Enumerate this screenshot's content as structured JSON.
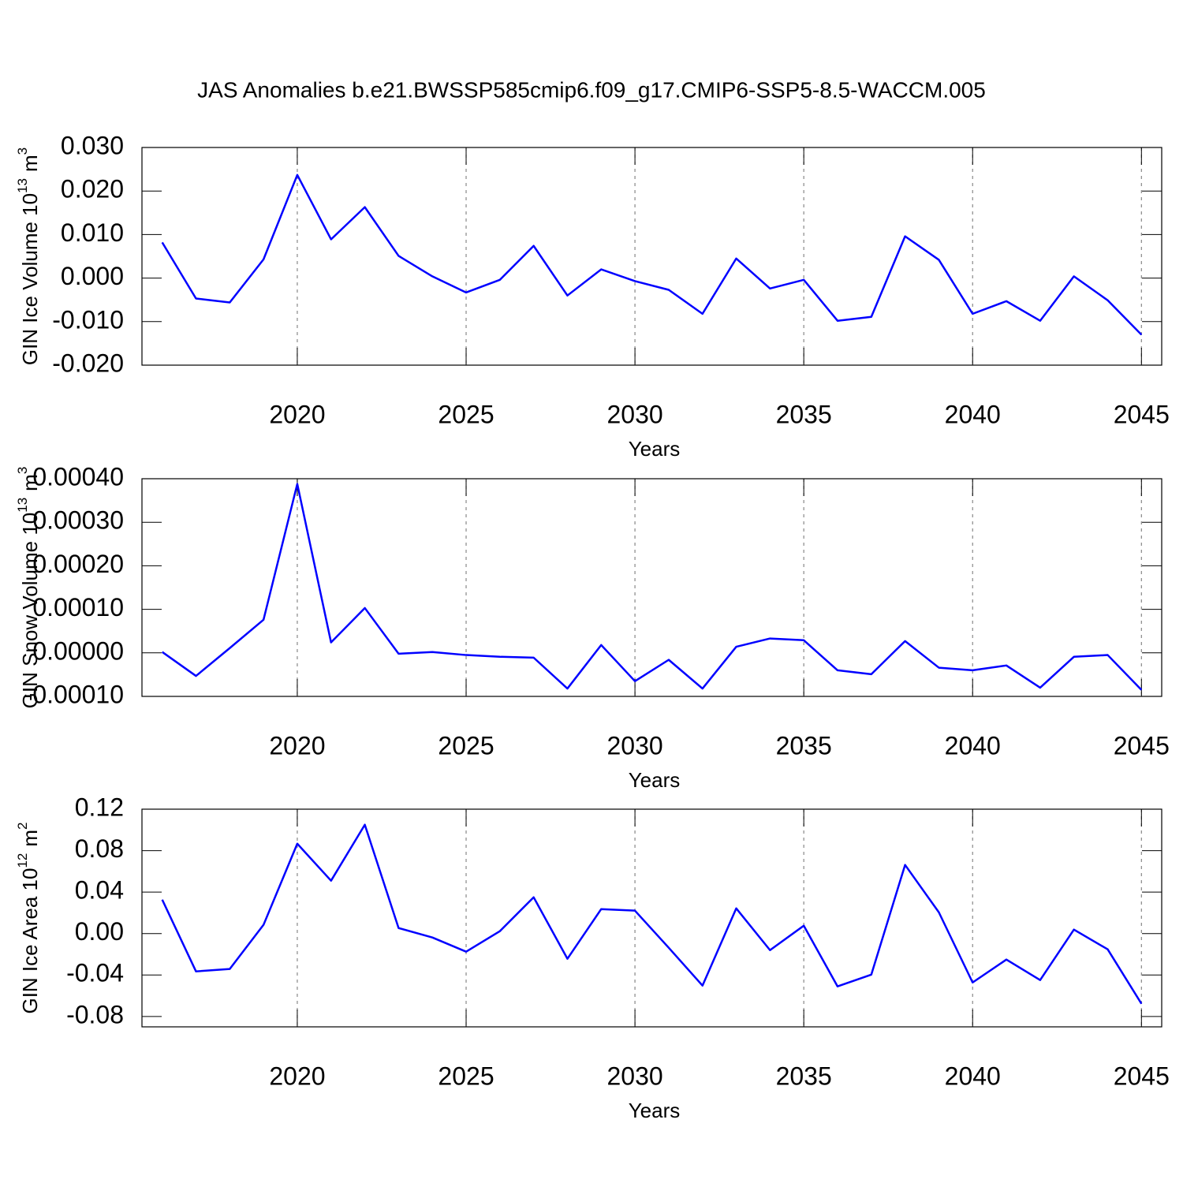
{
  "title": "JAS Anomalies b.e21.BWSSP585cmip6.f09_g17.CMIP6-SSP5-8.5-WACCM.005",
  "chart_data": [
    {
      "type": "line",
      "ylabel": {
        "text": "GIN Ice Volume 10",
        "power": "13",
        "unit": "m",
        "unit_power": "3"
      },
      "xlabel": "Years",
      "x": [
        2016,
        2017,
        2018,
        2019,
        2020,
        2021,
        2022,
        2023,
        2024,
        2025,
        2026,
        2027,
        2028,
        2029,
        2030,
        2031,
        2032,
        2033,
        2034,
        2035,
        2036,
        2037,
        2038,
        2039,
        2040,
        2041,
        2042,
        2043,
        2044,
        2045
      ],
      "series": [
        {
          "color": "#0000ff",
          "values": [
            0.0082,
            -0.0047,
            -0.0056,
            0.0043,
            0.0237,
            0.0089,
            0.0163,
            0.0051,
            0.0004,
            -0.0033,
            -0.0004,
            0.0074,
            -0.004,
            0.002,
            -0.0007,
            -0.0027,
            -0.0082,
            0.0045,
            -0.0024,
            -0.0004,
            -0.0098,
            -0.0089,
            0.0096,
            0.0042,
            -0.0082,
            -0.0053,
            -0.0098,
            0.0004,
            -0.0051,
            -0.013
          ]
        }
      ],
      "xlim": [
        2015.4,
        2045.6
      ],
      "xticks": [
        2020,
        2025,
        2030,
        2035,
        2040,
        2045
      ],
      "ylim": [
        -0.02,
        0.03
      ],
      "yticks": [
        {
          "value": -0.02,
          "label": "-0.020"
        },
        {
          "value": -0.01,
          "label": "-0.010"
        },
        {
          "value": 0,
          "label": "0.000"
        },
        {
          "value": 0.01,
          "label": "0.010"
        },
        {
          "value": 0.02,
          "label": "0.020"
        },
        {
          "value": 0.03,
          "label": "0.030"
        }
      ],
      "xgrid": true
    },
    {
      "type": "line",
      "ylabel": {
        "text": "GIN Snow Volume 10",
        "power": "13",
        "unit": "m",
        "unit_power": "3"
      },
      "xlabel": "Years",
      "x": [
        2016,
        2017,
        2018,
        2019,
        2020,
        2021,
        2022,
        2023,
        2024,
        2025,
        2026,
        2027,
        2028,
        2029,
        2030,
        2031,
        2032,
        2033,
        2034,
        2035,
        2036,
        2037,
        2038,
        2039,
        2040,
        2041,
        2042,
        2043,
        2044,
        2045
      ],
      "series": [
        {
          "color": "#0000ff",
          "values": [
            2e-06,
            -5.3e-05,
            1.1e-05,
            7.6e-05,
            0.000388,
            2.4e-05,
            0.000103,
            -2e-06,
            2e-06,
            -5e-06,
            -9e-06,
            -1.1e-05,
            -8.2e-05,
            1.8e-05,
            -6.5e-05,
            -1.6e-05,
            -8.2e-05,
            1.4e-05,
            3.3e-05,
            2.9e-05,
            -4e-05,
            -4.9e-05,
            2.7e-05,
            -3.4e-05,
            -4e-05,
            -2.9e-05,
            -8e-05,
            -9e-06,
            -5e-06,
            -8.5e-05
          ]
        }
      ],
      "xlim": [
        2015.4,
        2045.6
      ],
      "xticks": [
        2020,
        2025,
        2030,
        2035,
        2040,
        2045
      ],
      "ylim": [
        -0.0001,
        0.0004
      ],
      "yticks": [
        {
          "value": -0.0001,
          "label": "-0.00010"
        },
        {
          "value": 0,
          "label": "0.00000"
        },
        {
          "value": 0.0001,
          "label": "0.00010"
        },
        {
          "value": 0.0002,
          "label": "0.00020"
        },
        {
          "value": 0.0003,
          "label": "0.00030"
        },
        {
          "value": 0.0004,
          "label": "0.00040"
        }
      ],
      "xgrid": true
    },
    {
      "type": "line",
      "ylabel": {
        "text": "GIN Ice Area 10",
        "power": "12",
        "unit": "m",
        "unit_power": "2"
      },
      "xlabel": "Years",
      "x": [
        2016,
        2017,
        2018,
        2019,
        2020,
        2021,
        2022,
        2023,
        2024,
        2025,
        2026,
        2027,
        2028,
        2029,
        2030,
        2031,
        2032,
        2033,
        2034,
        2035,
        2036,
        2037,
        2038,
        2039,
        2040,
        2041,
        2042,
        2043,
        2044,
        2045
      ],
      "series": [
        {
          "color": "#0000ff",
          "values": [
            0.0327,
            -0.0365,
            -0.0342,
            0.0084,
            0.0867,
            0.051,
            0.105,
            0.0053,
            -0.0038,
            -0.0175,
            0.0023,
            0.035,
            -0.0243,
            0.0236,
            0.0221,
            -0.0137,
            -0.0502,
            0.0243,
            -0.016,
            0.0076,
            -0.051,
            -0.0396,
            0.0662,
            0.0205,
            -0.0472,
            -0.0251,
            -0.0449,
            0.0038,
            -0.0152,
            -0.0677
          ]
        }
      ],
      "xlim": [
        2015.4,
        2045.6
      ],
      "xticks": [
        2020,
        2025,
        2030,
        2035,
        2040,
        2045
      ],
      "ylim": [
        -0.09,
        0.12
      ],
      "yticks": [
        {
          "value": -0.08,
          "label": "-0.08"
        },
        {
          "value": -0.04,
          "label": "-0.04"
        },
        {
          "value": 0,
          "label": "0.00"
        },
        {
          "value": 0.04,
          "label": "0.04"
        },
        {
          "value": 0.08,
          "label": "0.08"
        },
        {
          "value": 0.12,
          "label": "0.12"
        }
      ],
      "xgrid": true
    }
  ]
}
